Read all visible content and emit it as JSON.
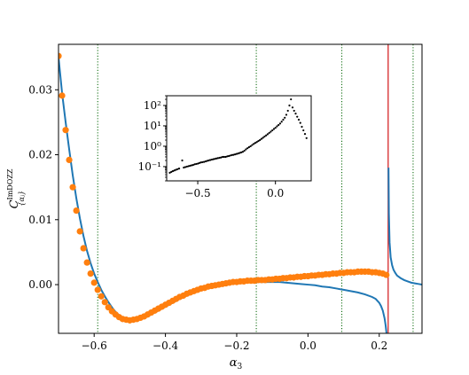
{
  "chart_data": [
    {
      "type": "line",
      "xlabel": "α",
      "xlabel_sub": "3",
      "ylabel": "C",
      "ylabel_sup": "ImDOZZ",
      "ylabel_sub": "{αⱼ}",
      "xlim": [
        -0.7,
        0.32
      ],
      "ylim": [
        -0.0075,
        0.037
      ],
      "xticks": [
        -0.6,
        -0.4,
        -0.2,
        0.0,
        0.2
      ],
      "xtick_labels": [
        "−0.6",
        "−0.4",
        "−0.2",
        "0.0",
        "0.2"
      ],
      "yticks": [
        0.0,
        0.01,
        0.02,
        0.03
      ],
      "ytick_labels": [
        "0.00",
        "0.01",
        "0.02",
        "0.03"
      ],
      "grid": false,
      "colors": {
        "curve": "#1f77b4",
        "points": "#ff7f0e",
        "vlines_green": "#006400",
        "vline_red": "#d62728"
      },
      "vlines_green": [
        -0.59,
        -0.145,
        0.095,
        0.295
      ],
      "vline_red": 0.225,
      "curve": {
        "x": [
          -0.7,
          -0.69,
          -0.68,
          -0.67,
          -0.66,
          -0.65,
          -0.64,
          -0.63,
          -0.62,
          -0.61,
          -0.6,
          -0.59,
          -0.58,
          -0.57,
          -0.56,
          -0.55,
          -0.54,
          -0.53,
          -0.52,
          -0.51,
          -0.5,
          -0.49,
          -0.48,
          -0.47,
          -0.46,
          -0.45,
          -0.44,
          -0.42,
          -0.4,
          -0.38,
          -0.36,
          -0.34,
          -0.32,
          -0.3,
          -0.28,
          -0.26,
          -0.24,
          -0.22,
          -0.2,
          -0.18,
          -0.16,
          -0.14,
          -0.12,
          -0.1,
          -0.08,
          -0.06,
          -0.04,
          -0.02,
          0.0,
          0.02,
          0.04,
          0.06,
          0.08,
          0.1,
          0.12,
          0.14,
          0.16,
          0.18,
          0.19,
          0.2,
          0.205,
          0.21,
          0.215,
          0.218,
          0.221,
          0.223
        ],
        "y": [
          0.035,
          0.0295,
          0.025,
          0.0208,
          0.0168,
          0.0133,
          0.0102,
          0.0075,
          0.0052,
          0.0033,
          0.0017,
          0.0004,
          -0.0008,
          -0.0018,
          -0.0027,
          -0.0035,
          -0.0042,
          -0.0047,
          -0.0051,
          -0.0053,
          -0.0054,
          -0.0055,
          -0.0054,
          -0.0053,
          -0.0051,
          -0.0049,
          -0.0046,
          -0.004,
          -0.0034,
          -0.0028,
          -0.0022,
          -0.0017,
          -0.0012,
          -0.0008,
          -0.0004,
          -0.0001,
          0.0001,
          0.0002,
          0.0003,
          0.0004,
          0.0004,
          0.0004,
          0.0004,
          0.0004,
          0.0004,
          0.0003,
          0.0002,
          0.0001,
          0.0,
          -0.0001,
          -0.0003,
          -0.0004,
          -0.0006,
          -0.0008,
          -0.001,
          -0.0012,
          -0.0015,
          -0.0019,
          -0.0022,
          -0.0028,
          -0.0033,
          -0.004,
          -0.0052,
          -0.0063,
          -0.0078,
          -0.0095
        ]
      },
      "curve_right": {
        "x": [
          0.226,
          0.227,
          0.229,
          0.232,
          0.236,
          0.24,
          0.245,
          0.25,
          0.26,
          0.27,
          0.28,
          0.29,
          0.3,
          0.31,
          0.32
        ],
        "y": [
          0.018,
          0.011,
          0.0065,
          0.0042,
          0.003,
          0.0023,
          0.0018,
          0.0014,
          0.001,
          0.0007,
          0.0005,
          0.0003,
          0.0002,
          0.0001,
          0.0
        ]
      },
      "points": {
        "x": [
          -0.7,
          -0.69,
          -0.68,
          -0.67,
          -0.66,
          -0.65,
          -0.64,
          -0.63,
          -0.62,
          -0.61,
          -0.6,
          -0.59,
          -0.58,
          -0.57,
          -0.56,
          -0.55,
          -0.54,
          -0.53,
          -0.52,
          -0.51,
          -0.5,
          -0.49,
          -0.48,
          -0.47,
          -0.46,
          -0.45,
          -0.44,
          -0.43,
          -0.42,
          -0.41,
          -0.4,
          -0.39,
          -0.38,
          -0.37,
          -0.36,
          -0.35,
          -0.34,
          -0.33,
          -0.32,
          -0.31,
          -0.3,
          -0.29,
          -0.28,
          -0.27,
          -0.26,
          -0.25,
          -0.24,
          -0.23,
          -0.22,
          -0.21,
          -0.2,
          -0.19,
          -0.18,
          -0.17,
          -0.16,
          -0.15,
          -0.14,
          -0.13,
          -0.12,
          -0.11,
          -0.1,
          -0.09,
          -0.08,
          -0.07,
          -0.06,
          -0.05,
          -0.04,
          -0.03,
          -0.02,
          -0.01,
          0.0,
          0.01,
          0.02,
          0.03,
          0.04,
          0.05,
          0.06,
          0.07,
          0.08,
          0.09,
          0.1,
          0.11,
          0.12,
          0.13,
          0.14,
          0.15,
          0.16,
          0.17,
          0.18,
          0.19,
          0.2,
          0.21,
          0.22
        ],
        "y": [
          0.0352,
          0.0291,
          0.0238,
          0.0192,
          0.015,
          0.0114,
          0.0082,
          0.0056,
          0.0034,
          0.0017,
          0.0003,
          -0.0008,
          -0.0018,
          -0.0027,
          -0.0035,
          -0.0041,
          -0.0046,
          -0.005,
          -0.0053,
          -0.0054,
          -0.0055,
          -0.0054,
          -0.0053,
          -0.0051,
          -0.0049,
          -0.0046,
          -0.0043,
          -0.004,
          -0.0037,
          -0.0034,
          -0.0031,
          -0.0028,
          -0.0025,
          -0.0022,
          -0.0019,
          -0.0017,
          -0.0014,
          -0.0012,
          -0.001,
          -0.0008,
          -0.0006,
          -0.0005,
          -0.0003,
          -0.0002,
          -0.0001,
          0.0,
          0.0001,
          0.0002,
          0.0003,
          0.0004,
          0.0004,
          0.0005,
          0.0005,
          0.0006,
          0.0006,
          0.0006,
          0.0007,
          0.0007,
          0.0007,
          0.0008,
          0.0008,
          0.0009,
          0.0009,
          0.001,
          0.001,
          0.0011,
          0.0011,
          0.0012,
          0.0012,
          0.0013,
          0.0013,
          0.0014,
          0.0014,
          0.0015,
          0.0015,
          0.0016,
          0.0016,
          0.0017,
          0.0017,
          0.0018,
          0.0018,
          0.0019,
          0.0019,
          0.0019,
          0.002,
          0.002,
          0.002,
          0.002,
          0.0019,
          0.0019,
          0.0018,
          0.0017,
          0.0015
        ]
      }
    },
    {
      "type": "scatter",
      "inset": true,
      "yscale": "log",
      "xlim": [
        -0.7,
        0.23
      ],
      "ylim": [
        0.02,
        300
      ],
      "xticks": [
        -0.5,
        0.0
      ],
      "xtick_labels": [
        "−0.5",
        "0.0"
      ],
      "yticks": [
        0.1,
        1,
        10,
        100
      ],
      "ytick_labels": [
        "10⁻¹",
        "10⁰",
        "10¹",
        "10²"
      ],
      "x": [
        -0.68,
        -0.67,
        -0.66,
        -0.65,
        -0.64,
        -0.63,
        -0.62,
        -0.6,
        -0.59,
        -0.58,
        -0.57,
        -0.56,
        -0.55,
        -0.54,
        -0.53,
        -0.52,
        -0.51,
        -0.5,
        -0.49,
        -0.48,
        -0.47,
        -0.46,
        -0.45,
        -0.44,
        -0.43,
        -0.42,
        -0.41,
        -0.4,
        -0.39,
        -0.38,
        -0.37,
        -0.36,
        -0.35,
        -0.34,
        -0.33,
        -0.32,
        -0.31,
        -0.3,
        -0.29,
        -0.28,
        -0.27,
        -0.26,
        -0.25,
        -0.24,
        -0.23,
        -0.22,
        -0.21,
        -0.2,
        -0.19,
        -0.18,
        -0.17,
        -0.16,
        -0.15,
        -0.14,
        -0.13,
        -0.12,
        -0.11,
        -0.1,
        -0.09,
        -0.08,
        -0.07,
        -0.06,
        -0.05,
        -0.04,
        -0.03,
        -0.02,
        -0.01,
        0.0,
        0.01,
        0.02,
        0.03,
        0.04,
        0.05,
        0.06,
        0.07,
        0.08,
        0.09,
        0.1,
        0.11,
        0.12,
        0.13,
        0.14,
        0.15,
        0.16,
        0.17,
        0.18,
        0.19,
        0.2
      ],
      "y": [
        0.05,
        0.055,
        0.06,
        0.065,
        0.07,
        0.075,
        0.08,
        0.2,
        0.09,
        0.095,
        0.1,
        0.105,
        0.11,
        0.115,
        0.12,
        0.13,
        0.135,
        0.14,
        0.15,
        0.16,
        0.165,
        0.17,
        0.18,
        0.19,
        0.2,
        0.21,
        0.22,
        0.23,
        0.24,
        0.25,
        0.26,
        0.27,
        0.28,
        0.3,
        0.3,
        0.3,
        0.32,
        0.33,
        0.35,
        0.37,
        0.38,
        0.4,
        0.42,
        0.44,
        0.47,
        0.5,
        0.53,
        0.6,
        0.7,
        0.8,
        0.9,
        1.0,
        1.15,
        1.3,
        1.45,
        1.6,
        1.8,
        2.0,
        2.3,
        2.6,
        3.0,
        3.4,
        3.9,
        4.5,
        5.2,
        6.0,
        7.0,
        8.0,
        9.5,
        11,
        13,
        16,
        20,
        25,
        35,
        55,
        100,
        200,
        80,
        55,
        40,
        28,
        20,
        14,
        9,
        6,
        4,
        2.5
      ]
    }
  ]
}
